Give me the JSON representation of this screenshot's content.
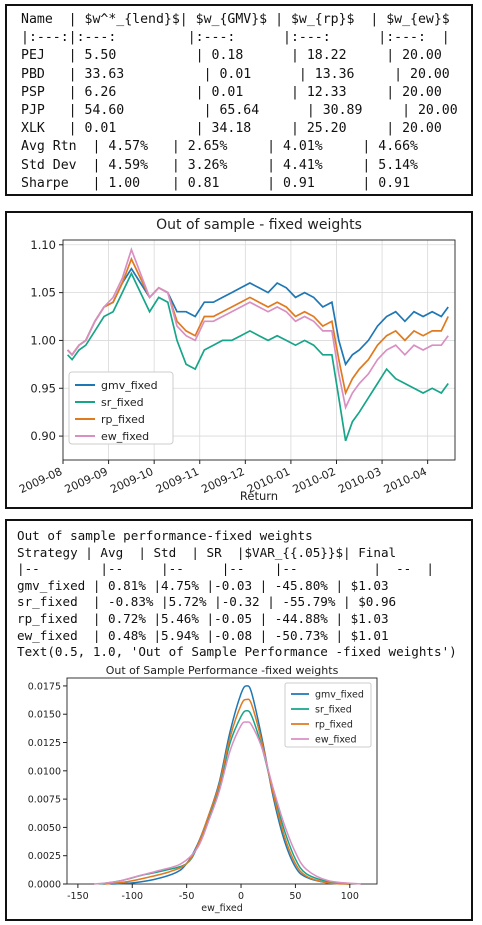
{
  "weights_table": {
    "lines": [
      "Name  | $w^*_{lend}$| $w_{GMV}$ | $w_{rp}$  | $w_{ew}$",
      "|:---:|:---:         |:---:      |:---:      |:---:  |",
      "PEJ   | 5.50          | 0.18      | 18.22     | 20.00",
      "PBD   | 33.63          | 0.01      | 13.36     | 20.00",
      "PSP   | 6.26          | 0.01      | 12.33     | 20.00",
      "PJP   | 54.60          | 65.64      | 30.89     | 20.00",
      "XLK   | 0.01          | 34.18     | 25.20     | 20.00",
      "Avg Rtn  | 4.57%   | 2.65%     | 4.01%     | 4.66%",
      "Std Dev  | 4.59%   | 3.26%     | 4.41%     | 5.14%",
      "Sharpe   | 1.00    | 0.81      | 0.91      | 0.91"
    ]
  },
  "performance_table": {
    "lines": [
      "Out of sample performance-fixed weights",
      "Strategy | Avg  | Std  | SR  |$VAR_{{.05}}$| Final",
      "|--        |--     |--     |--    |--          |  --  |",
      "gmv_fixed | 0.81% |4.75% |-0.03 | -45.80% | $1.03",
      "sr_fixed  | -0.83% |5.72% |-0.32 | -55.79% | $0.96",
      "rp_fixed  | 0.72% |5.46% |-0.05 | -44.88% | $1.03",
      "ew_fixed  | 0.48% |5.94% |-0.08 | -50.73% | $1.01",
      "Text(0.5, 1.0, 'Out of Sample Performance -fixed weights')"
    ]
  },
  "chart_data": [
    {
      "type": "line",
      "title": "Out of sample - fixed weights",
      "xlabel": "Return",
      "ylabel": "",
      "x_ticks": [
        "2009-08",
        "2009-09",
        "2009-10",
        "2009-11",
        "2009-12",
        "2010-01",
        "2010-02",
        "2010-03",
        "2010-04"
      ],
      "x_range": [
        0,
        8.6
      ],
      "ylim": [
        0.875,
        1.105
      ],
      "y_ticks": [
        "0.90",
        "0.95",
        "1.00",
        "1.05",
        "1.10"
      ],
      "y_tick_values": [
        0.9,
        0.95,
        1.0,
        1.05,
        1.1
      ],
      "legend_position": "lower-left",
      "grid": true,
      "series": [
        {
          "name": "gmv_fixed",
          "color": "#1f77b4",
          "x": [
            0.1,
            0.2,
            0.35,
            0.5,
            0.7,
            0.9,
            1.1,
            1.3,
            1.5,
            1.7,
            1.9,
            2.1,
            2.3,
            2.5,
            2.7,
            2.9,
            3.1,
            3.3,
            3.5,
            3.7,
            3.9,
            4.1,
            4.3,
            4.5,
            4.7,
            4.9,
            5.1,
            5.3,
            5.5,
            5.7,
            5.9,
            6.05,
            6.2,
            6.35,
            6.5,
            6.7,
            6.9,
            7.1,
            7.3,
            7.5,
            7.7,
            7.9,
            8.1,
            8.3,
            8.45
          ],
          "y": [
            0.99,
            0.985,
            0.995,
            1.0,
            1.02,
            1.035,
            1.04,
            1.06,
            1.075,
            1.06,
            1.045,
            1.055,
            1.05,
            1.03,
            1.03,
            1.025,
            1.04,
            1.04,
            1.045,
            1.05,
            1.055,
            1.06,
            1.055,
            1.05,
            1.06,
            1.055,
            1.045,
            1.05,
            1.045,
            1.035,
            1.04,
            1.0,
            0.975,
            0.985,
            0.99,
            1.0,
            1.015,
            1.025,
            1.03,
            1.02,
            1.03,
            1.025,
            1.03,
            1.025,
            1.035
          ]
        },
        {
          "name": "sr_fixed",
          "color": "#17a589",
          "x": [
            0.1,
            0.2,
            0.35,
            0.5,
            0.7,
            0.9,
            1.1,
            1.3,
            1.5,
            1.7,
            1.9,
            2.1,
            2.3,
            2.5,
            2.7,
            2.9,
            3.1,
            3.3,
            3.5,
            3.7,
            3.9,
            4.1,
            4.3,
            4.5,
            4.7,
            4.9,
            5.1,
            5.3,
            5.5,
            5.7,
            5.9,
            6.05,
            6.2,
            6.35,
            6.5,
            6.7,
            6.9,
            7.1,
            7.3,
            7.5,
            7.7,
            7.9,
            8.1,
            8.3,
            8.45
          ],
          "y": [
            0.985,
            0.98,
            0.99,
            0.995,
            1.01,
            1.025,
            1.03,
            1.05,
            1.07,
            1.05,
            1.03,
            1.045,
            1.04,
            1.0,
            0.975,
            0.97,
            0.99,
            0.995,
            1.0,
            1.0,
            1.005,
            1.01,
            1.005,
            1.0,
            1.005,
            1.0,
            0.995,
            1.0,
            0.995,
            0.985,
            0.985,
            0.94,
            0.895,
            0.915,
            0.925,
            0.94,
            0.955,
            0.97,
            0.96,
            0.955,
            0.95,
            0.945,
            0.95,
            0.945,
            0.955
          ]
        },
        {
          "name": "rp_fixed",
          "color": "#e07a1f",
          "x": [
            0.1,
            0.2,
            0.35,
            0.5,
            0.7,
            0.9,
            1.1,
            1.3,
            1.5,
            1.7,
            1.9,
            2.1,
            2.3,
            2.5,
            2.7,
            2.9,
            3.1,
            3.3,
            3.5,
            3.7,
            3.9,
            4.1,
            4.3,
            4.5,
            4.7,
            4.9,
            5.1,
            5.3,
            5.5,
            5.7,
            5.9,
            6.05,
            6.2,
            6.35,
            6.5,
            6.7,
            6.9,
            7.1,
            7.3,
            7.5,
            7.7,
            7.9,
            8.1,
            8.3,
            8.45
          ],
          "y": [
            0.99,
            0.985,
            0.995,
            1.0,
            1.02,
            1.035,
            1.04,
            1.06,
            1.085,
            1.065,
            1.045,
            1.055,
            1.05,
            1.02,
            1.01,
            1.005,
            1.025,
            1.025,
            1.03,
            1.035,
            1.04,
            1.045,
            1.04,
            1.035,
            1.04,
            1.035,
            1.025,
            1.03,
            1.025,
            1.015,
            1.02,
            0.98,
            0.945,
            0.96,
            0.97,
            0.98,
            0.995,
            1.005,
            1.01,
            1.0,
            1.01,
            1.005,
            1.01,
            1.01,
            1.025
          ]
        },
        {
          "name": "ew_fixed",
          "color": "#d98fc2",
          "x": [
            0.1,
            0.2,
            0.35,
            0.5,
            0.7,
            0.9,
            1.1,
            1.3,
            1.5,
            1.7,
            1.9,
            2.1,
            2.3,
            2.5,
            2.7,
            2.9,
            3.1,
            3.3,
            3.5,
            3.7,
            3.9,
            4.1,
            4.3,
            4.5,
            4.7,
            4.9,
            5.1,
            5.3,
            5.5,
            5.7,
            5.9,
            6.05,
            6.2,
            6.35,
            6.5,
            6.7,
            6.9,
            7.1,
            7.3,
            7.5,
            7.7,
            7.9,
            8.1,
            8.3,
            8.45
          ],
          "y": [
            0.99,
            0.985,
            0.995,
            1.0,
            1.02,
            1.035,
            1.045,
            1.065,
            1.095,
            1.07,
            1.045,
            1.055,
            1.05,
            1.015,
            1.005,
            1.0,
            1.02,
            1.02,
            1.025,
            1.03,
            1.035,
            1.04,
            1.035,
            1.03,
            1.035,
            1.03,
            1.02,
            1.025,
            1.02,
            1.01,
            1.01,
            0.965,
            0.93,
            0.945,
            0.955,
            0.965,
            0.98,
            0.99,
            0.995,
            0.985,
            0.995,
            0.99,
            0.995,
            0.995,
            1.005
          ]
        }
      ]
    },
    {
      "type": "line",
      "title": "Out of Sample Performance -fixed weights",
      "xlabel": "ew_fixed",
      "ylabel": "",
      "xlim": [
        -160,
        125
      ],
      "ylim": [
        0,
        0.0182
      ],
      "x_ticks": [
        "-150",
        "-100",
        "-50",
        "0",
        "50",
        "100"
      ],
      "x_tick_values": [
        -150,
        -100,
        -50,
        0,
        50,
        100
      ],
      "y_ticks": [
        "0.0000",
        "0.0025",
        "0.0050",
        "0.0075",
        "0.0100",
        "0.0125",
        "0.0150",
        "0.0175"
      ],
      "y_tick_values": [
        0,
        0.0025,
        0.005,
        0.0075,
        0.01,
        0.0125,
        0.015,
        0.0175
      ],
      "legend_position": "top-right",
      "grid": false,
      "series": [
        {
          "name": "gmv_fixed",
          "color": "#1f77b4",
          "x": [
            -120,
            -100,
            -80,
            -60,
            -50,
            -40,
            -30,
            -20,
            -10,
            0,
            5,
            10,
            20,
            30,
            40,
            50,
            60,
            80,
            100
          ],
          "y": [
            0,
            0.0001,
            0.0004,
            0.001,
            0.0018,
            0.0035,
            0.006,
            0.009,
            0.0135,
            0.0168,
            0.0175,
            0.0168,
            0.0125,
            0.0075,
            0.0038,
            0.0015,
            0.0006,
            0.0001,
            0
          ]
        },
        {
          "name": "sr_fixed",
          "color": "#17a589",
          "x": [
            -130,
            -110,
            -90,
            -70,
            -50,
            -40,
            -30,
            -20,
            -10,
            0,
            5,
            10,
            20,
            30,
            40,
            50,
            60,
            80,
            100
          ],
          "y": [
            0,
            0.0003,
            0.0008,
            0.0012,
            0.0018,
            0.0033,
            0.0058,
            0.0085,
            0.0125,
            0.0148,
            0.0153,
            0.0148,
            0.0118,
            0.008,
            0.0047,
            0.0022,
            0.0009,
            0.0002,
            0
          ]
        },
        {
          "name": "rp_fixed",
          "color": "#e07a1f",
          "x": [
            -125,
            -105,
            -85,
            -65,
            -50,
            -40,
            -30,
            -20,
            -10,
            0,
            5,
            10,
            20,
            30,
            40,
            50,
            60,
            80,
            100
          ],
          "y": [
            0,
            0.0002,
            0.0006,
            0.0011,
            0.0018,
            0.0034,
            0.006,
            0.0088,
            0.013,
            0.0158,
            0.0163,
            0.0158,
            0.0122,
            0.0078,
            0.0042,
            0.0018,
            0.0007,
            0.0001,
            0
          ]
        },
        {
          "name": "ew_fixed",
          "color": "#d98fc2",
          "x": [
            -135,
            -115,
            -95,
            -75,
            -55,
            -40,
            -30,
            -20,
            -10,
            0,
            5,
            10,
            20,
            30,
            40,
            50,
            60,
            80,
            110
          ],
          "y": [
            0,
            0.0002,
            0.0007,
            0.0012,
            0.0018,
            0.0032,
            0.0055,
            0.0082,
            0.0118,
            0.014,
            0.0143,
            0.014,
            0.0118,
            0.0083,
            0.0052,
            0.0028,
            0.0013,
            0.0003,
            0
          ]
        }
      ]
    }
  ]
}
